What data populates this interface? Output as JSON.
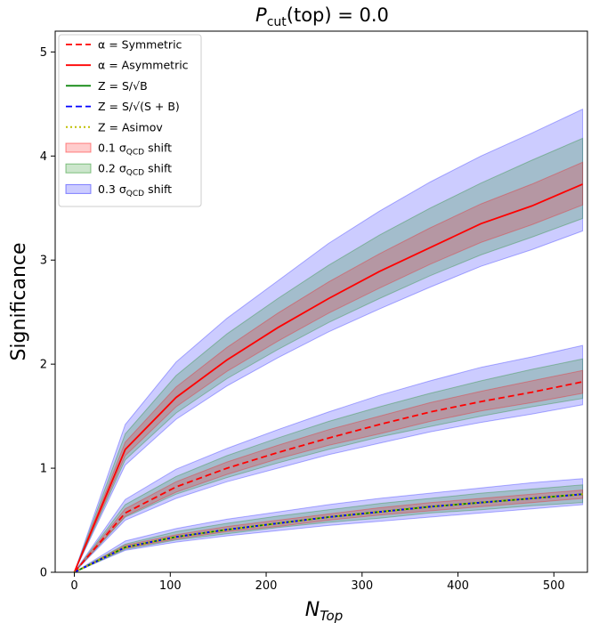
{
  "chart_data": {
    "type": "line",
    "title": "P_cut(top) = 0.0",
    "title_parts": {
      "main": "P",
      "sub": "cut",
      "rest": "(top) = 0.0"
    },
    "xlabel": "N_Top",
    "xlabel_parts": {
      "main": "N",
      "sub": "Top"
    },
    "ylabel": "Significance",
    "xlim": [
      -20,
      535
    ],
    "ylim": [
      0,
      5.2
    ],
    "xticks": [
      0,
      100,
      200,
      300,
      400,
      500
    ],
    "yticks": [
      0,
      1,
      2,
      3,
      4,
      5
    ],
    "grid": false,
    "legend_position": "top-left",
    "x": [
      0,
      53,
      106,
      159,
      212,
      265,
      318,
      371,
      424,
      477,
      530
    ],
    "series": [
      {
        "name": "α = Asymmetric",
        "legend_label": "α =  Asymmetric",
        "color": "#ff0000",
        "style": "solid",
        "values": [
          0,
          1.18,
          1.68,
          2.04,
          2.35,
          2.63,
          2.89,
          3.12,
          3.35,
          3.52,
          3.73
        ]
      },
      {
        "name": "α = Symmetric",
        "legend_label": "α =  Symmetric",
        "color": "#ff0000",
        "style": "dashed",
        "values": [
          0,
          0.57,
          0.82,
          1.0,
          1.15,
          1.29,
          1.42,
          1.54,
          1.64,
          1.73,
          1.83
        ]
      },
      {
        "name": "Z = S/√B",
        "legend_label": "Z = S/√B",
        "color": "#008000",
        "style": "solid",
        "values": [
          0,
          0.24,
          0.34,
          0.41,
          0.47,
          0.53,
          0.58,
          0.63,
          0.67,
          0.71,
          0.75
        ]
      },
      {
        "name": "Z = S/√(S+B)",
        "legend_label": "Z = S/√(S + B)",
        "color": "#0000ff",
        "style": "dashed",
        "values": [
          0,
          0.24,
          0.34,
          0.41,
          0.47,
          0.53,
          0.58,
          0.63,
          0.67,
          0.71,
          0.75
        ]
      },
      {
        "name": "Z = Asimov",
        "legend_label": "Z =  Asimov",
        "color": "#bfbf00",
        "style": "dotted",
        "values": [
          0,
          0.24,
          0.34,
          0.41,
          0.47,
          0.53,
          0.58,
          0.63,
          0.67,
          0.71,
          0.75
        ]
      }
    ],
    "bands": [
      {
        "name": "0.3 σ_QCD shift",
        "legend_label": "0.3 σQCD shift",
        "color": "#0000ff",
        "opacity": 0.2,
        "curves": [
          {
            "upper": [
              0,
              1.42,
              2.02,
              2.44,
              2.8,
              3.16,
              3.47,
              3.75,
              4.0,
              4.22,
              4.45
            ],
            "lower": [
              0,
              1.03,
              1.47,
              1.79,
              2.06,
              2.31,
              2.53,
              2.74,
              2.94,
              3.1,
              3.28
            ]
          },
          {
            "upper": [
              0,
              0.7,
              0.99,
              1.19,
              1.37,
              1.54,
              1.7,
              1.84,
              1.97,
              2.07,
              2.18
            ],
            "lower": [
              0,
              0.5,
              0.71,
              0.87,
              1.0,
              1.13,
              1.24,
              1.35,
              1.44,
              1.52,
              1.61
            ]
          },
          {
            "upper": [
              0,
              0.3,
              0.42,
              0.51,
              0.58,
              0.65,
              0.71,
              0.76,
              0.81,
              0.86,
              0.9
            ],
            "lower": [
              0,
              0.21,
              0.29,
              0.35,
              0.4,
              0.45,
              0.49,
              0.53,
              0.57,
              0.61,
              0.65
            ]
          }
        ]
      },
      {
        "name": "0.2 σ_QCD shift",
        "legend_label": "0.2 σQCD shift",
        "color": "#008000",
        "opacity": 0.2,
        "curves": [
          {
            "upper": [
              0,
              1.33,
              1.89,
              2.29,
              2.63,
              2.95,
              3.24,
              3.5,
              3.74,
              3.96,
              4.17
            ],
            "lower": [
              0,
              1.08,
              1.53,
              1.86,
              2.14,
              2.4,
              2.63,
              2.85,
              3.05,
              3.22,
              3.4
            ]
          },
          {
            "upper": [
              0,
              0.65,
              0.92,
              1.12,
              1.29,
              1.45,
              1.59,
              1.72,
              1.84,
              1.95,
              2.05
            ],
            "lower": [
              0,
              0.53,
              0.75,
              0.91,
              1.05,
              1.18,
              1.3,
              1.4,
              1.5,
              1.59,
              1.67
            ]
          },
          {
            "upper": [
              0,
              0.27,
              0.39,
              0.47,
              0.54,
              0.6,
              0.66,
              0.71,
              0.76,
              0.8,
              0.84
            ],
            "lower": [
              0,
              0.22,
              0.31,
              0.37,
              0.43,
              0.48,
              0.52,
              0.57,
              0.6,
              0.64,
              0.67
            ]
          }
        ]
      },
      {
        "name": "0.1 σ_QCD shift",
        "legend_label": "0.1 σQCD shift",
        "color": "#ff0000",
        "opacity": 0.2,
        "curves": [
          {
            "upper": [
              0,
              1.25,
              1.78,
              2.16,
              2.49,
              2.79,
              3.06,
              3.31,
              3.54,
              3.73,
              3.94
            ],
            "lower": [
              0,
              1.12,
              1.59,
              1.93,
              2.22,
              2.49,
              2.73,
              2.96,
              3.17,
              3.34,
              3.53
            ]
          },
          {
            "upper": [
              0,
              0.61,
              0.87,
              1.06,
              1.22,
              1.37,
              1.5,
              1.63,
              1.74,
              1.84,
              1.94
            ],
            "lower": [
              0,
              0.54,
              0.77,
              0.94,
              1.09,
              1.22,
              1.33,
              1.45,
              1.55,
              1.63,
              1.72
            ]
          },
          {
            "upper": [
              0,
              0.26,
              0.36,
              0.44,
              0.5,
              0.56,
              0.62,
              0.67,
              0.71,
              0.75,
              0.79
            ],
            "lower": [
              0,
              0.23,
              0.32,
              0.39,
              0.44,
              0.5,
              0.55,
              0.59,
              0.63,
              0.67,
              0.71
            ]
          }
        ]
      }
    ],
    "legend_order": [
      "α = Symmetric",
      "α = Asymmetric",
      "Z = S/√B",
      "Z = S/√(S+B)",
      "Z = Asimov",
      "0.1 σ_QCD shift",
      "0.2 σ_QCD shift",
      "0.3 σ_QCD shift"
    ]
  }
}
